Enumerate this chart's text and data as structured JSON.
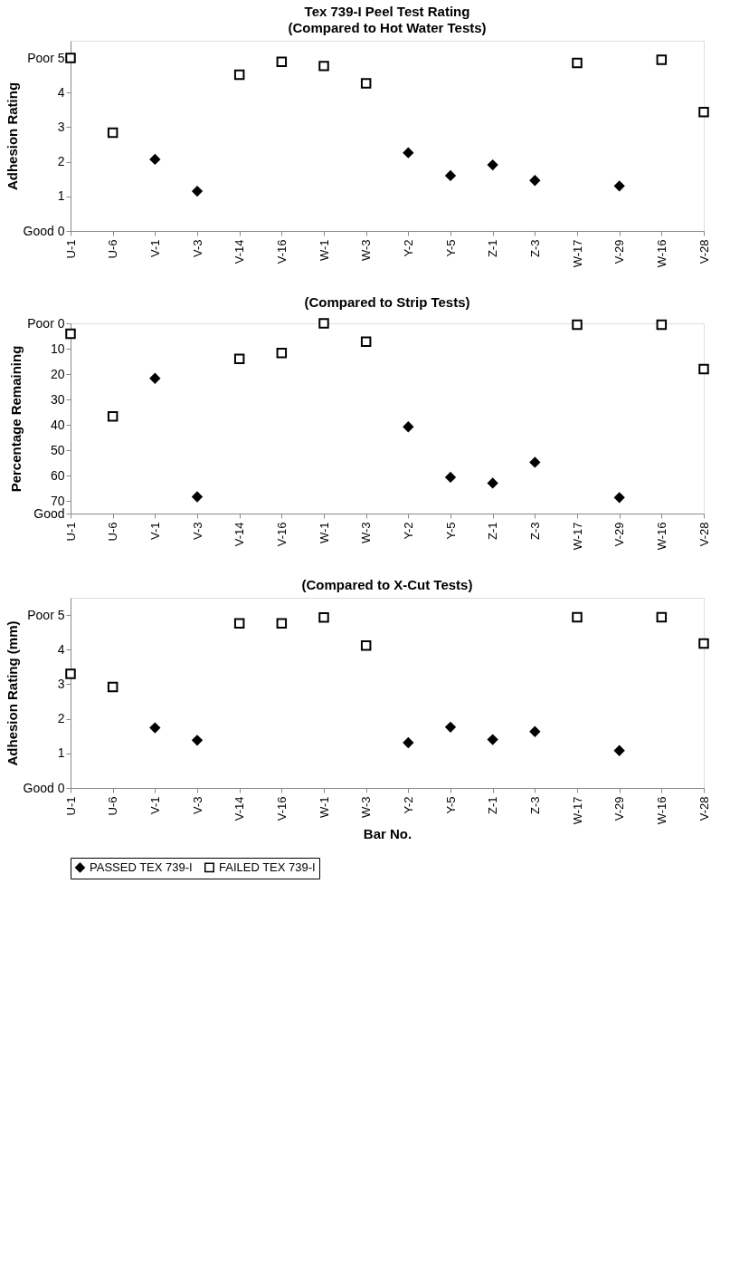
{
  "chart_data": [
    {
      "type": "scatter",
      "title": "Tex 739-I Peel Test Rating",
      "subtitle": "(Compared to Hot Water Tests)",
      "ylabel": "Adhesion Rating",
      "categories": [
        "U-1",
        "U-6",
        "V-1",
        "V-3",
        "V-14",
        "V-16",
        "W-1",
        "W-3",
        "Y-2",
        "Y-5",
        "Z-1",
        "Z-3",
        "W-17",
        "V-29",
        "W-16",
        "V-28"
      ],
      "series": [
        {
          "color": "#000000",
          "marker": "diamond",
          "values": [
            null,
            null,
            2.07,
            1.15,
            null,
            null,
            null,
            null,
            2.26,
            1.6,
            1.91,
            1.46,
            null,
            1.3,
            null,
            null
          ]
        },
        {
          "color": "#000000",
          "marker": "square",
          "values": [
            5.0,
            2.84,
            null,
            null,
            4.52,
            4.89,
            4.77,
            4.27,
            null,
            null,
            null,
            null,
            4.86,
            null,
            4.95,
            3.44
          ]
        }
      ],
      "ylim": [
        0,
        5.5
      ],
      "yticks": [
        {
          "value": 0,
          "label": "Good 0"
        },
        1,
        2,
        3,
        4,
        {
          "value": 5,
          "label": "Poor 5"
        }
      ],
      "grid": false,
      "legend": false
    },
    {
      "type": "scatter",
      "title": "(Compared to Strip Tests)",
      "ylabel": "Percentage Remaining",
      "categories": [
        "U-1",
        "U-6",
        "V-1",
        "V-3",
        "V-14",
        "V-16",
        "W-1",
        "W-3",
        "Y-2",
        "Y-5",
        "Z-1",
        "Z-3",
        "W-17",
        "V-29",
        "W-16",
        "V-28"
      ],
      "series": [
        {
          "color": "#000000",
          "marker": "diamond",
          "values": [
            null,
            null,
            21.7,
            68.4,
            null,
            null,
            null,
            null,
            40.8,
            60.7,
            63.0,
            54.8,
            null,
            68.7,
            null,
            null
          ]
        },
        {
          "color": "#000000",
          "marker": "square",
          "values": [
            4.1,
            36.7,
            null,
            null,
            14.0,
            11.7,
            0,
            7.2,
            null,
            null,
            null,
            null,
            0.5,
            null,
            0.5,
            18.0
          ]
        }
      ],
      "ylim": [
        75,
        0
      ],
      "yticks": [
        {
          "value": 0,
          "label": "Poor 0"
        },
        10,
        20,
        30,
        40,
        50,
        60,
        70,
        {
          "value": 75,
          "label": "Good"
        }
      ],
      "grid": false,
      "legend": false
    },
    {
      "type": "scatter",
      "title": "(Compared to X-Cut Tests)",
      "xlabel": "Bar No.",
      "ylabel": "Adhesion Rating (mm)",
      "categories": [
        "U-1",
        "U-6",
        "V-1",
        "V-3",
        "V-14",
        "V-16",
        "W-1",
        "W-3",
        "Y-2",
        "Y-5",
        "Z-1",
        "Z-3",
        "W-17",
        "V-29",
        "W-16",
        "V-28"
      ],
      "series": [
        {
          "name": "PASSED TEX 739-I",
          "color": "#000000",
          "marker": "diamond",
          "values": [
            null,
            null,
            1.74,
            1.38,
            null,
            null,
            null,
            null,
            1.31,
            1.76,
            1.4,
            1.63,
            null,
            1.08,
            null,
            null
          ]
        },
        {
          "name": "FAILED TEX 739-I",
          "color": "#000000",
          "marker": "square",
          "values": [
            3.3,
            2.92,
            null,
            null,
            4.76,
            4.76,
            4.93,
            4.12,
            null,
            null,
            null,
            null,
            4.94,
            null,
            4.94,
            4.18
          ]
        }
      ],
      "ylim": [
        0,
        5.5
      ],
      "yticks": [
        {
          "value": 0,
          "label": "Good 0"
        },
        1,
        2,
        3,
        4,
        {
          "value": 5,
          "label": "Poor 5"
        }
      ],
      "grid": false,
      "legend": "bottom"
    }
  ]
}
